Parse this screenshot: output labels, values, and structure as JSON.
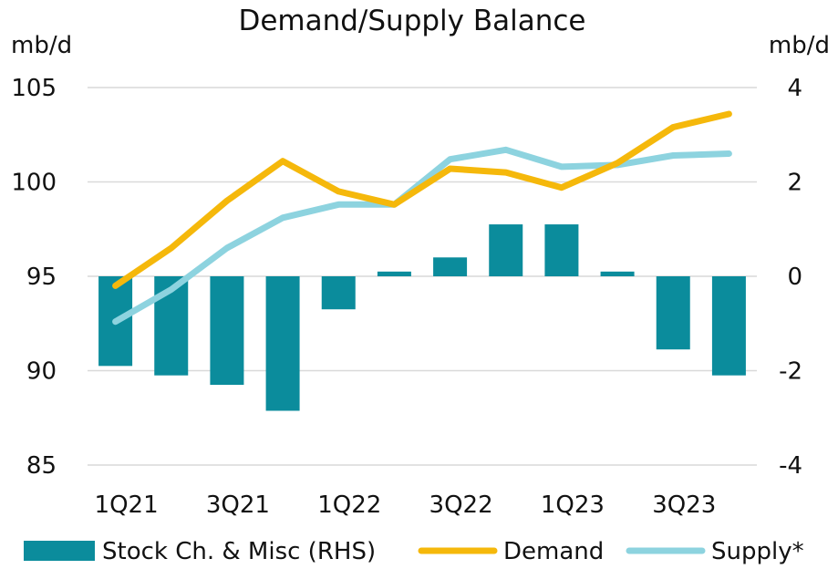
{
  "chart_data": {
    "type": "bar+line",
    "title": "Demand/Supply Balance",
    "left_unit": "mb/d",
    "right_unit": "mb/d",
    "left_axis": {
      "min": 85,
      "max": 105,
      "ticks": [
        105,
        100,
        95,
        90,
        85
      ]
    },
    "right_axis": {
      "min": -4,
      "max": 4,
      "ticks": [
        4,
        2,
        0,
        -2,
        -4
      ]
    },
    "categories": [
      "1Q21",
      "2Q21",
      "3Q21",
      "4Q21",
      "1Q22",
      "2Q22",
      "3Q22",
      "4Q22",
      "1Q23",
      "2Q23",
      "3Q23",
      "4Q23"
    ],
    "x_tick_labels": [
      {
        "index": 0,
        "label": "1Q21"
      },
      {
        "index": 2,
        "label": "3Q21"
      },
      {
        "index": 4,
        "label": "1Q22"
      },
      {
        "index": 6,
        "label": "3Q22"
      },
      {
        "index": 8,
        "label": "1Q23"
      },
      {
        "index": 10,
        "label": "3Q23"
      }
    ],
    "series": [
      {
        "name": "Stock Ch. & Misc (RHS)",
        "type": "bar",
        "axis": "right",
        "color": "#0b8c9c",
        "values": [
          -1.9,
          -2.1,
          -2.3,
          -2.85,
          -0.7,
          0.1,
          0.4,
          1.1,
          1.1,
          0.1,
          -1.55,
          -2.1
        ]
      },
      {
        "name": "Demand",
        "type": "line",
        "axis": "left",
        "color": "#f5b80b",
        "values": [
          94.5,
          96.5,
          99.0,
          101.1,
          99.5,
          98.8,
          100.7,
          100.5,
          99.7,
          101.0,
          102.9,
          103.6
        ]
      },
      {
        "name": "Supply*",
        "type": "line",
        "axis": "left",
        "color": "#8dd3df",
        "values": [
          92.6,
          94.3,
          96.5,
          98.1,
          98.8,
          98.8,
          101.2,
          101.7,
          100.8,
          100.9,
          101.4,
          101.5
        ]
      }
    ],
    "legend": {
      "position": "bottom",
      "items": [
        "Stock Ch. & Misc (RHS)",
        "Demand",
        "Supply*"
      ]
    }
  }
}
